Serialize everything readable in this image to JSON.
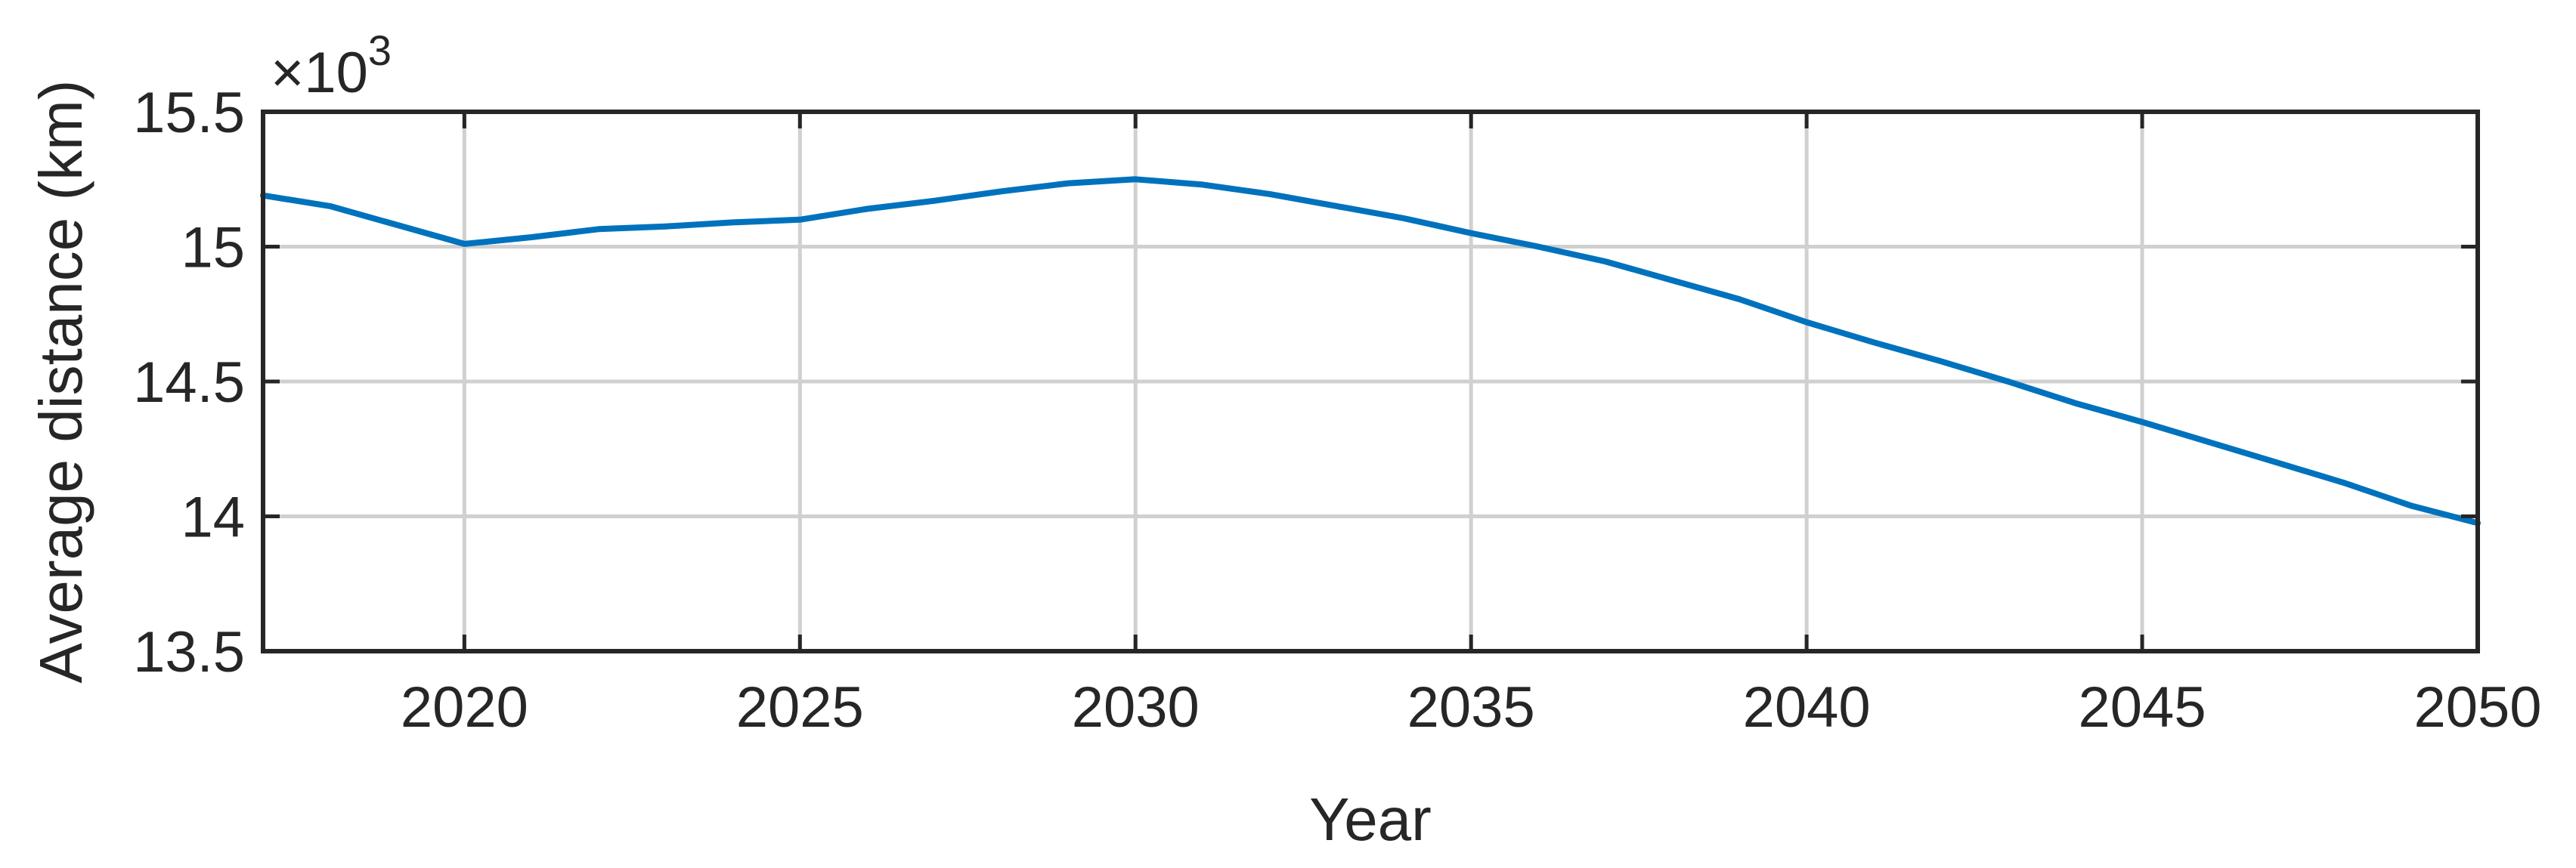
{
  "chart_data": {
    "type": "line",
    "title": "",
    "xlabel": "Year",
    "ylabel": "Average distance (km)",
    "y_multiplier": {
      "prefix": "×10",
      "exponent": "3"
    },
    "xlim": [
      2017,
      2050
    ],
    "ylim": [
      13.5,
      15.5
    ],
    "xticks": [
      2020,
      2025,
      2030,
      2035,
      2040,
      2045,
      2050
    ],
    "xtick_labels": [
      "2020",
      "2025",
      "2030",
      "2035",
      "2040",
      "2045",
      "2050"
    ],
    "yticks": [
      13.5,
      14,
      14.5,
      15,
      15.5
    ],
    "ytick_labels": [
      "13.5",
      "14",
      "14.5",
      "15",
      "15.5"
    ],
    "grid": true,
    "legend": false,
    "series": [
      {
        "color": "#0072BD",
        "x": [
          2017,
          2018,
          2019,
          2020,
          2021,
          2022,
          2023,
          2024,
          2025,
          2026,
          2027,
          2028,
          2029,
          2030,
          2031,
          2032,
          2033,
          2034,
          2035,
          2036,
          2037,
          2038,
          2039,
          2040,
          2041,
          2042,
          2043,
          2044,
          2045,
          2046,
          2047,
          2048,
          2049,
          2050
        ],
        "y": [
          15.19,
          15.15,
          15.08,
          15.01,
          15.035,
          15.065,
          15.075,
          15.09,
          15.1,
          15.14,
          15.17,
          15.205,
          15.235,
          15.25,
          15.23,
          15.195,
          15.15,
          15.105,
          15.05,
          15.0,
          14.945,
          14.875,
          14.805,
          14.72,
          14.645,
          14.575,
          14.5,
          14.42,
          14.35,
          14.275,
          14.2,
          14.125,
          14.04,
          13.975
        ]
      }
    ]
  }
}
